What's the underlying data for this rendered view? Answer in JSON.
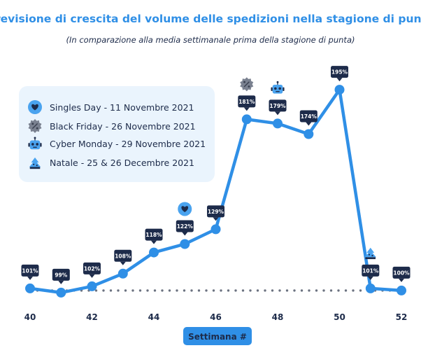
{
  "chart_data": {
    "type": "line",
    "title": "Previsione di crescita del volume delle spedizioni nella stagione di punta",
    "subtitle": "(In comparazione alla media settimanale prima della stagione di punta)",
    "xlabel": "Settimana #",
    "ylabel": "",
    "x": [
      40,
      41,
      42,
      43,
      44,
      45,
      46,
      47,
      48,
      49,
      50,
      51,
      52
    ],
    "xticks": [
      "40",
      "42",
      "44",
      "46",
      "48",
      "50",
      "52"
    ],
    "xlim": [
      40,
      52
    ],
    "ylim": [
      95,
      200
    ],
    "baseline": 100,
    "grid": false,
    "series": [
      {
        "values": [
          101,
          99,
          102,
          108,
          118,
          122,
          129,
          181,
          179,
          174,
          195,
          101,
          100
        ],
        "labels": [
          "101%",
          "99%",
          "102%",
          "108%",
          "118%",
          "122%",
          "129%",
          "181%",
          "179%",
          "174%",
          "195%",
          "101%",
          "100%"
        ],
        "color": "#2f8fe6"
      }
    ],
    "event_markers": [
      {
        "week": 45,
        "icon": "heart-icon"
      },
      {
        "week": 47,
        "icon": "discount-badge-icon"
      },
      {
        "week": 48,
        "icon": "robot-icon"
      },
      {
        "week": 51,
        "icon": "christmas-tree-icon"
      }
    ],
    "legend": {
      "placement": "top-left",
      "entries": [
        {
          "label": "Singles Day - 11 Novembre 2021",
          "icon": "heart-icon"
        },
        {
          "label": "Black Friday - 26 Novembre 2021",
          "icon": "discount-badge-icon"
        },
        {
          "label": "Cyber Monday - 29 Novembre 2021",
          "icon": "robot-icon"
        },
        {
          "label": "Natale - 25 & 26 Decembre 2021",
          "icon": "christmas-tree-icon"
        }
      ]
    }
  },
  "colors": {
    "line": "#2f8fe6",
    "label_bg": "#1d2b4a",
    "title": "#2f8fe6",
    "legend_bg": "#eaf4fd",
    "baseline_dots": "#6b7280",
    "gray_icon": "#7a8190"
  }
}
